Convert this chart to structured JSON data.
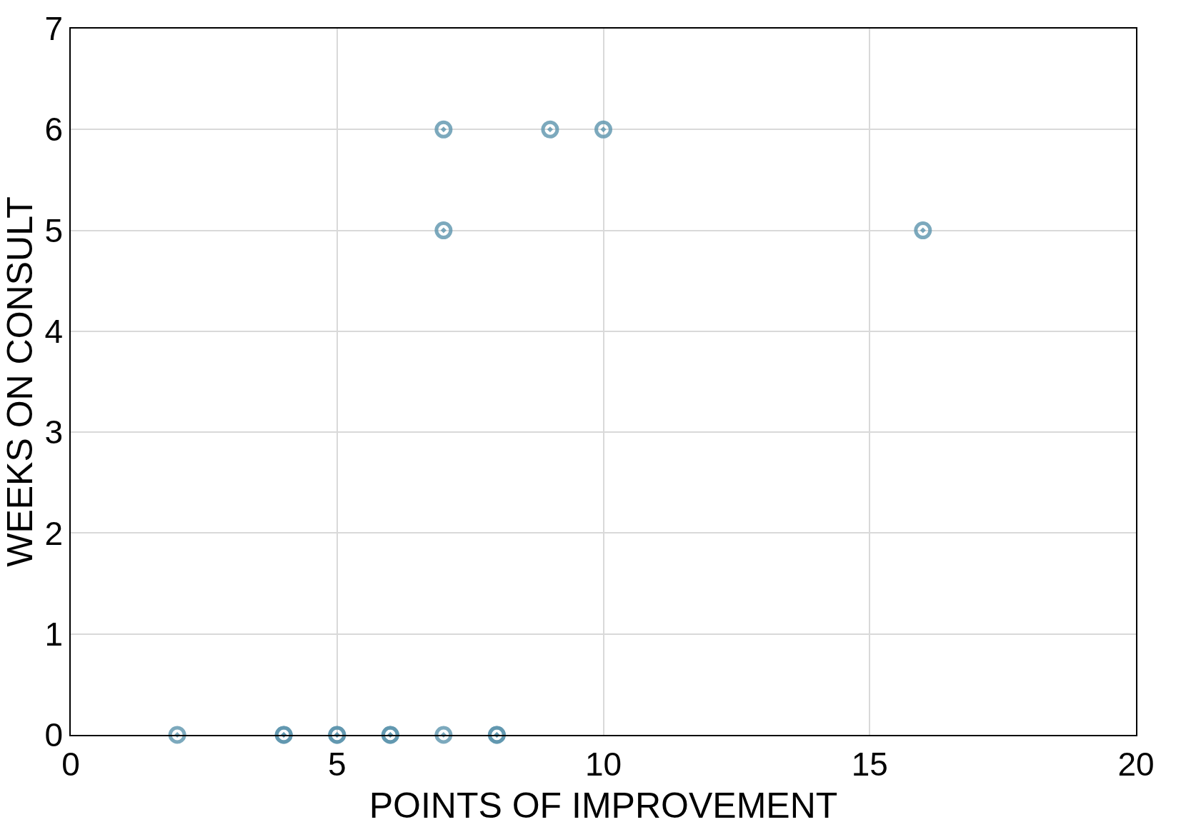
{
  "chart_data": {
    "type": "scatter",
    "xlabel": "POINTS OF IMPROVEMENT",
    "ylabel": "WEEKS ON CONSULT",
    "x": [
      2,
      4,
      4,
      5,
      5,
      6,
      6,
      7,
      8,
      8,
      7,
      9,
      10,
      7,
      16
    ],
    "values": [
      0,
      0,
      0,
      0,
      0,
      0,
      0,
      0,
      0,
      0,
      6,
      6,
      6,
      5,
      5
    ],
    "color": "#5b93ad",
    "xlim": [
      0,
      20
    ],
    "xticks": [
      0,
      5,
      10,
      15,
      20
    ],
    "ylim": [
      0,
      7
    ],
    "yticks": [
      0,
      1,
      2,
      3,
      4,
      5,
      6,
      7
    ],
    "grid": true,
    "marker": "circle",
    "legend": false
  }
}
